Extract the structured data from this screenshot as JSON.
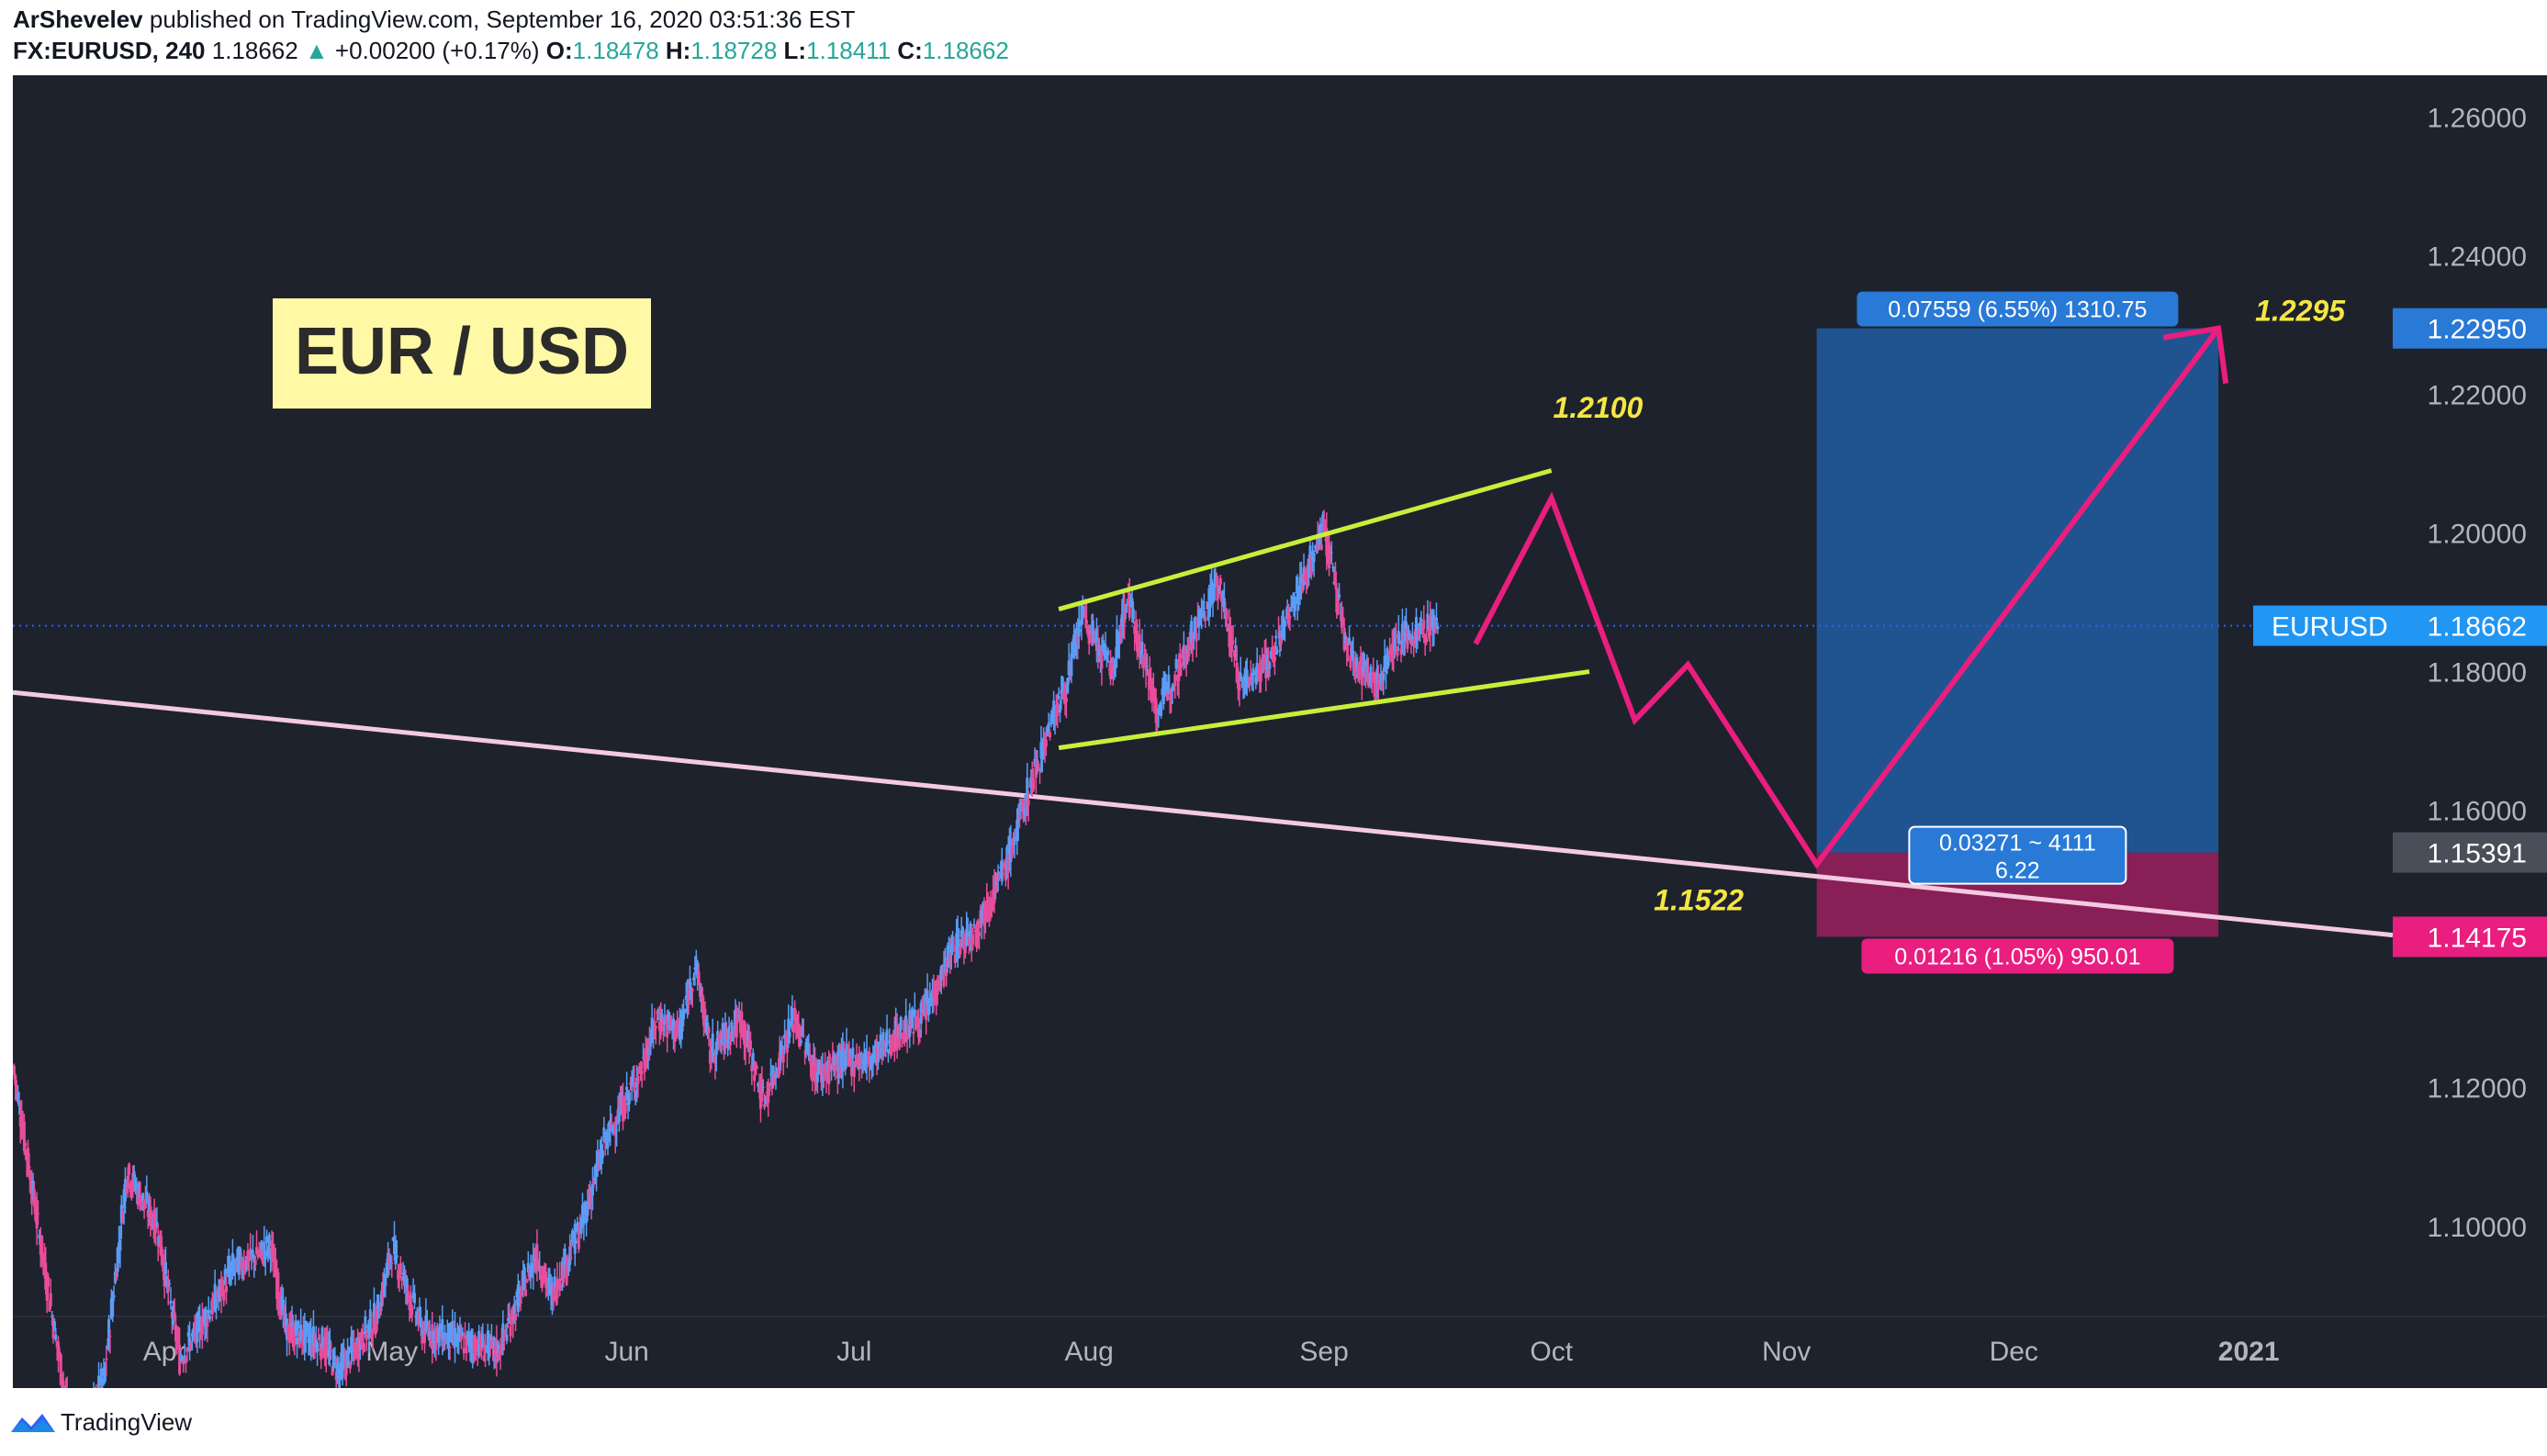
{
  "header": {
    "author": "ArShevelev",
    "published_text": "published on TradingView.com, September 16, 2020 03:51:36 EST",
    "symbol": "FX:EURUSD, 240",
    "last": "1.18662",
    "change": "+0.00200 (+0.17%)",
    "o_label": "O:",
    "o_value": "1.18478",
    "h_label": "H:",
    "h_value": "1.18728",
    "l_label": "L:",
    "l_value": "1.18411",
    "c_label": "C:",
    "c_value": "1.18662"
  },
  "footer": {
    "brand": "TradingView"
  },
  "colors": {
    "background": "#1e222d",
    "up_candle": "#5b9cf6",
    "down_candle": "#e84d9a",
    "wedge": "#c6ef3c",
    "trendline": "#f4c9e3",
    "forecast": "#e91e7f",
    "target_zone": "#1f5a9b",
    "stop_zone": "#9b1f5e",
    "annotation": "#f5e642"
  },
  "chart_data": {
    "type": "line",
    "title": "EUR / USD",
    "xlabel": "",
    "ylabel": "",
    "x_ticks": [
      "Apr",
      "May",
      "Jun",
      "Jul",
      "Aug",
      "Sep",
      "Oct",
      "Nov",
      "Dec",
      "2021"
    ],
    "y_ticks": [
      "1.26000",
      "1.24000",
      "1.22000",
      "1.20000",
      "1.18000",
      "1.16000",
      "1.12000",
      "1.10000"
    ],
    "ylim": [
      1.087,
      1.266
    ],
    "grid": false,
    "series": [
      {
        "name": "EURUSD",
        "points": [
          [
            "2020-03-12",
            1.123
          ],
          [
            "2020-03-16",
            1.095
          ],
          [
            "2020-03-20",
            1.068
          ],
          [
            "2020-03-24",
            1.078
          ],
          [
            "2020-03-27",
            1.108
          ],
          [
            "2020-03-31",
            1.1
          ],
          [
            "2020-04-03",
            1.081
          ],
          [
            "2020-04-07",
            1.088
          ],
          [
            "2020-04-10",
            1.094
          ],
          [
            "2020-04-15",
            1.097
          ],
          [
            "2020-04-17",
            1.085
          ],
          [
            "2020-04-22",
            1.083
          ],
          [
            "2020-04-24",
            1.079
          ],
          [
            "2020-04-29",
            1.087
          ],
          [
            "2020-05-01",
            1.097
          ],
          [
            "2020-05-05",
            1.085
          ],
          [
            "2020-05-08",
            1.084
          ],
          [
            "2020-05-12",
            1.083
          ],
          [
            "2020-05-15",
            1.082
          ],
          [
            "2020-05-20",
            1.096
          ],
          [
            "2020-05-22",
            1.09
          ],
          [
            "2020-05-26",
            1.1
          ],
          [
            "2020-05-29",
            1.112
          ],
          [
            "2020-06-03",
            1.123
          ],
          [
            "2020-06-05",
            1.13
          ],
          [
            "2020-06-08",
            1.128
          ],
          [
            "2020-06-10",
            1.138
          ],
          [
            "2020-06-12",
            1.125
          ],
          [
            "2020-06-16",
            1.13
          ],
          [
            "2020-06-19",
            1.118
          ],
          [
            "2020-06-23",
            1.13
          ],
          [
            "2020-06-26",
            1.122
          ],
          [
            "2020-06-30",
            1.124
          ],
          [
            "2020-07-03",
            1.124
          ],
          [
            "2020-07-07",
            1.128
          ],
          [
            "2020-07-10",
            1.13
          ],
          [
            "2020-07-14",
            1.14
          ],
          [
            "2020-07-17",
            1.143
          ],
          [
            "2020-07-21",
            1.152
          ],
          [
            "2020-07-24",
            1.163
          ],
          [
            "2020-07-27",
            1.173
          ],
          [
            "2020-07-29",
            1.178
          ],
          [
            "2020-07-31",
            1.188
          ],
          [
            "2020-08-04",
            1.18
          ],
          [
            "2020-08-06",
            1.191
          ],
          [
            "2020-08-10",
            1.174
          ],
          [
            "2020-08-14",
            1.184
          ],
          [
            "2020-08-18",
            1.193
          ],
          [
            "2020-08-21",
            1.178
          ],
          [
            "2020-08-25",
            1.182
          ],
          [
            "2020-08-28",
            1.19
          ],
          [
            "2020-09-01",
            1.201
          ],
          [
            "2020-09-04",
            1.183
          ],
          [
            "2020-09-08",
            1.178
          ],
          [
            "2020-09-10",
            1.184
          ],
          [
            "2020-09-14",
            1.186
          ],
          [
            "2020-09-16",
            1.187
          ]
        ]
      },
      {
        "name": "Projection",
        "points": [
          [
            "2020-09-21",
            1.184
          ],
          [
            "2020-10-01",
            1.205
          ],
          [
            "2020-10-12",
            1.173
          ],
          [
            "2020-10-19",
            1.181
          ],
          [
            "2020-11-05",
            1.1522
          ],
          [
            "2020-12-28",
            1.2295
          ]
        ]
      }
    ],
    "lines": {
      "wedge_upper": [
        [
          "2020-07-28",
          1.189
        ],
        [
          "2020-10-01",
          1.209
        ]
      ],
      "wedge_lower": [
        [
          "2020-07-28",
          1.169
        ],
        [
          "2020-10-06",
          1.18
        ]
      ],
      "trendline": [
        [
          "2020-03-12",
          1.177
        ],
        [
          "2021-01-20",
          1.142
        ]
      ],
      "last_price": 1.18662
    },
    "position": {
      "start": "2020-11-05",
      "end": "2020-12-28",
      "entry": 1.15391,
      "target": 1.2295,
      "stop": 1.14175,
      "target_label": "0.07559 (6.55%) 1310.75",
      "stop_label": "0.01216 (1.05%) 950.01",
      "center_label_1": "0.03271 ~ 4111",
      "center_label_2": "6.22"
    },
    "annotations": [
      {
        "text": "1.2100",
        "date": "2020-09-30",
        "price": 1.21
      },
      {
        "text": "1.2295",
        "date": "2020-12-28",
        "price": 1.2295
      },
      {
        "text": "1.1522",
        "date": "2020-10-28",
        "price": 1.1522
      }
    ],
    "price_labels": [
      {
        "name": "target",
        "value": "1.22950"
      },
      {
        "name": "symbol",
        "symbol": "EURUSD",
        "value": "1.18662"
      },
      {
        "name": "entry",
        "value": "1.15391"
      },
      {
        "name": "stop",
        "value": "1.14175"
      }
    ]
  }
}
